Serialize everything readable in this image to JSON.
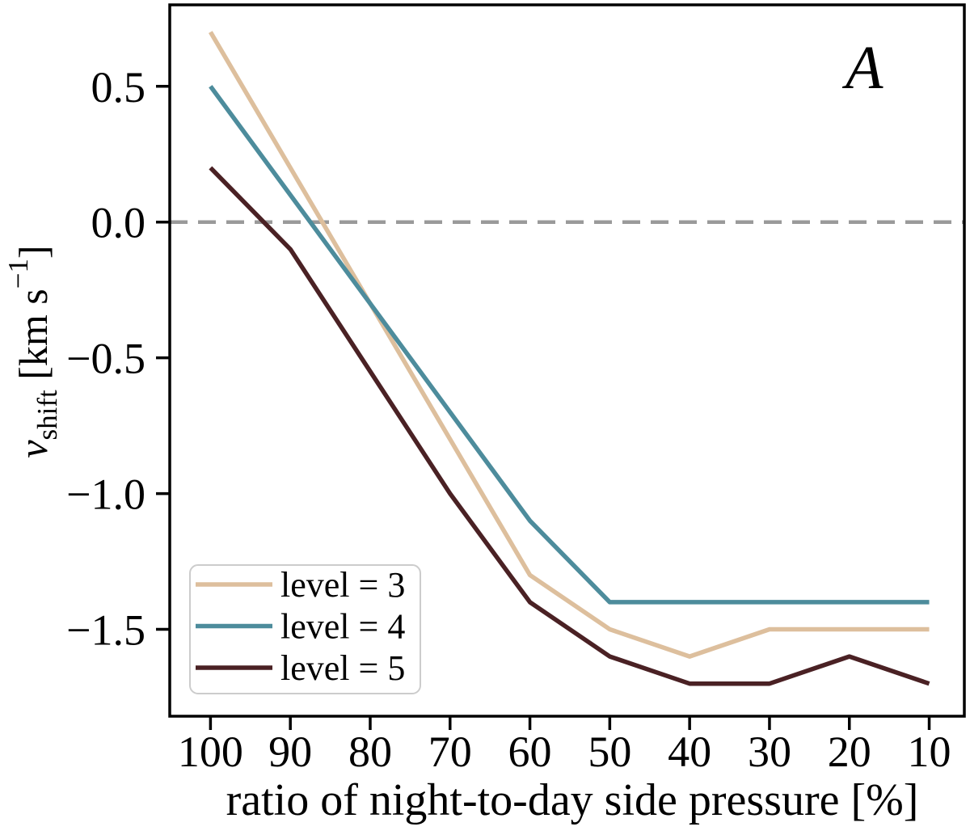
{
  "figure": {
    "panel_label": "A",
    "background": "#ffffff"
  },
  "chart_data": {
    "type": "line",
    "title": "",
    "xlabel": "ratio of night-to-day side pressure [%]",
    "ylabel": {
      "var": "v",
      "sub": "shift",
      "unit_pre": " [km s",
      "sup": "−1",
      "unit_post": "]"
    },
    "x": [
      100,
      90,
      80,
      70,
      60,
      50,
      40,
      30,
      20,
      10
    ],
    "x_axis_reversed": true,
    "xlim": [
      105.1,
      5.6
    ],
    "ylim": [
      -1.82,
      0.8
    ],
    "grid": false,
    "axis_color": "#000000",
    "xticks": [
      {
        "v": 100,
        "label": "100"
      },
      {
        "v": 90,
        "label": "90"
      },
      {
        "v": 80,
        "label": "80"
      },
      {
        "v": 70,
        "label": "70"
      },
      {
        "v": 60,
        "label": "60"
      },
      {
        "v": 50,
        "label": "50"
      },
      {
        "v": 40,
        "label": "40"
      },
      {
        "v": 30,
        "label": "30"
      },
      {
        "v": 20,
        "label": "20"
      },
      {
        "v": 10,
        "label": "10"
      }
    ],
    "yticks": [
      {
        "v": 0.5,
        "label": "0.5"
      },
      {
        "v": 0.0,
        "label": "0.0"
      },
      {
        "v": -0.5,
        "label": "−0.5"
      },
      {
        "v": -1.0,
        "label": "−1.0"
      },
      {
        "v": -1.5,
        "label": "−1.5"
      }
    ],
    "zero_line": {
      "y": 0,
      "color": "#9a9a9a",
      "style": "dashed"
    },
    "series": [
      {
        "name": "level = 3",
        "color": "#ddbf9d",
        "values": [
          0.7,
          0.2,
          -0.3,
          -0.8,
          -1.3,
          -1.5,
          -1.6,
          -1.5,
          -1.5,
          -1.5
        ]
      },
      {
        "name": "level = 4",
        "color": "#4d8c9c",
        "values": [
          0.5,
          0.1,
          -0.3,
          -0.7,
          -1.1,
          -1.4,
          -1.4,
          -1.4,
          -1.4,
          -1.4
        ]
      },
      {
        "name": "level = 5",
        "color": "#4a2124",
        "values": [
          0.2,
          -0.1,
          -0.55,
          -1.0,
          -1.4,
          -1.6,
          -1.7,
          -1.7,
          -1.6,
          -1.7
        ]
      }
    ],
    "legend": {
      "position": "lower left"
    }
  }
}
